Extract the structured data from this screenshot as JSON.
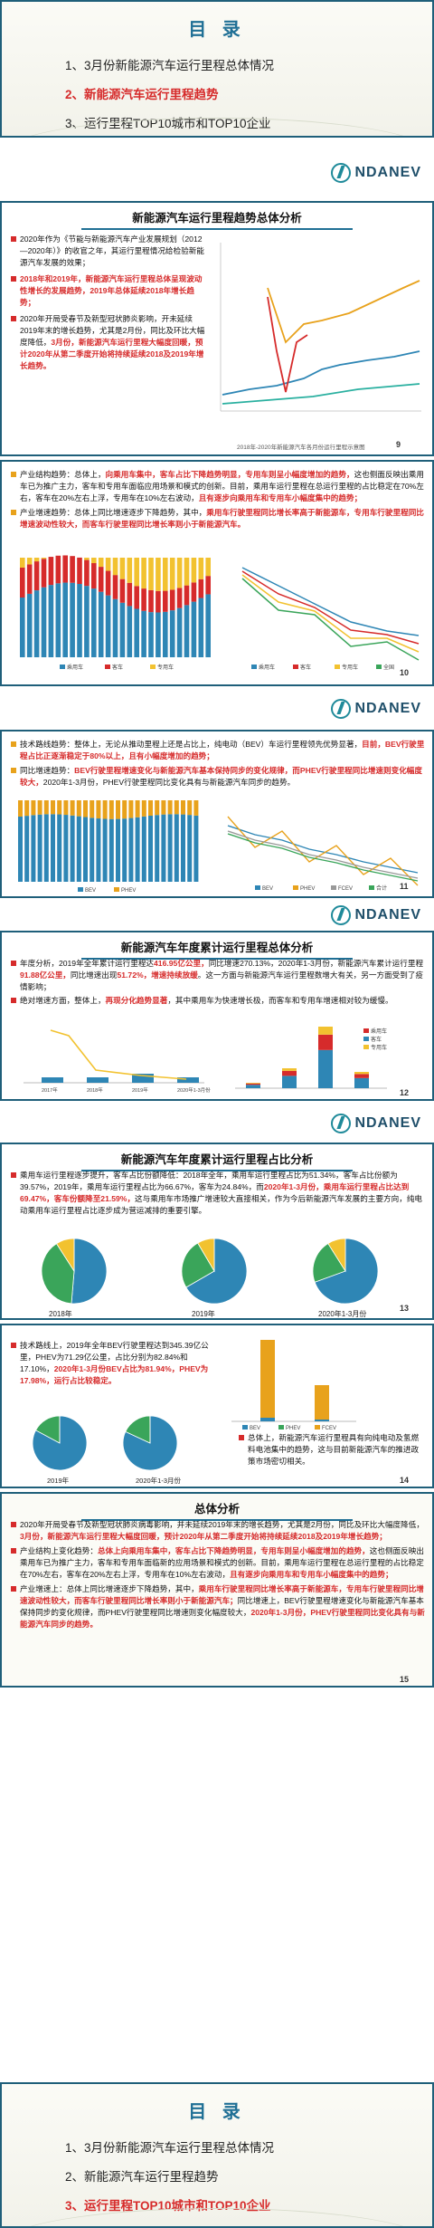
{
  "toc1": {
    "title": "目 录",
    "items": [
      "1、3月份新能源汽车运行里程总体情况",
      "2、新能源汽车运行里程趋势",
      "3、运行里程TOP10城市和TOP10企业"
    ]
  },
  "brand": "NDANEV",
  "s2": {
    "title": "新能源汽车运行里程趋势总体分析",
    "p1": "2020年作为《节能与新能源汽车产业发展规划（2012—2020年）》的收官之年，其运行里程情况给检验新能源汽车发展的效果；",
    "p2": "2018年和2019年，新能源汽车运行里程总体呈现波动性增长的发展趋势，2019年总体延续2018年增长趋势；",
    "p3a": "2020年开局受春节及新型冠状肺炎影响，开未延续2019年末的增长趋势，尤其是2月份，同比及环比大幅度降低，",
    "p3b": "3月份，新能源汽车运行里程大幅度回暖，预计2020年从第二季度开始将持续延续2018及2019年增长趋势。",
    "caption": "2018年-2020年新能源汽车各月份运行里程示意图",
    "page": "9"
  },
  "s3": {
    "b1a": "产业结构趋势：总体上，",
    "b1b": "向乘用车集中，客车占比下降趋势明显，专用车则呈小幅度增加的趋势，",
    "b1c": "这也侧面反映出乘用车已为推广主力，客车和专用车面临应用场景和模式的创新。目前，乘用车运行里程在总运行里程的占比稳定在70%左右，客车在20%左右上浮，专用车在10%左右波动，",
    "b1d": "且有逐步向乘用车和专用车小幅度集中的趋势；",
    "b2a": "产业增速趋势：总体上同比增速逐步下降趋势，其中，",
    "b2b": "乘用车行驶里程同比增长率高于新能源车，专用车行驶里程同比增速波动性较大，而客车行驶里程同比增长率则小于新能源汽车。",
    "legend1": [
      "乘用车",
      "客车",
      "专用车"
    ],
    "legend2": [
      "乘用车",
      "客车",
      "专用车",
      "全国"
    ],
    "page": "10"
  },
  "s4": {
    "b1a": "技术路线趋势：整体上，无论从推动里程上还是占比上，纯电动（BEV）车运行里程领先优势显著，",
    "b1b": "目前，BEV行驶里程占比正逐渐稳定于80%以上，且有小幅度增加的趋势；",
    "b2a": "同比增速趋势：",
    "b2b": "BEV行驶里程增速变化与新能源汽车基本保持同步的变化规律，而PHEV行驶里程同比增速则变化幅度较大，",
    "b2c": "2020年1-3月份，PHEV行驶里程同比变化具有与新能源汽车同步的趋势。",
    "legend1": [
      "BEV",
      "PHEV"
    ],
    "legend2": [
      "BEV",
      "PHEV",
      "FCEV",
      "合计"
    ],
    "page": "11"
  },
  "s5": {
    "title": "新能源汽车年度累计运行里程总体分析",
    "b1a": "年度分析，2019年全年累计运行里程达",
    "b1b": "416.95亿公里，",
    "b1c": "同比增速270.13%，2020年1-3月份，新能源汽车累计运行里程",
    "b1d": "91.88亿公里，",
    "b1e": "同比增速出现",
    "b1f": "51.72%，增速持续放缓",
    "b1g": "。这一方面与新能源汽车运行里程数增大有关，另一方面受到了疫情影响；",
    "b2a": "绝对增速方面，整体上，",
    "b2b": "再现分化趋势显著",
    "b2c": "，其中乘用车为快速增长极，而客车和专用车增速相对较为缓慢。",
    "cats": [
      "2017年",
      "2018年",
      "2019年",
      "2020年1-3月份"
    ],
    "legend": [
      "乘用车",
      "客车",
      "专用车"
    ],
    "page": "12"
  },
  "s6": {
    "title": "新能源汽车年度累计运行里程占比分析",
    "b1a": "乘用车运行里程逐步提升，客车占比份额降低：2018年全年，乘用车运行里程占比为51.34%，客车占比份额为39.57%，2019年，乘用车运行里程占比为66.67%，客车为24.84%，而",
    "b1b": "2020年1-3月份，乘用车运行里程占比达到69.47%，客车份额降至21.59%，",
    "b1c": "这与乘用车市场推广增速较大直接相关，作为今后新能源汽车发展的主要方向，纯电动乘用车运行里程占比逐步成为营运减排的重要引擎。",
    "labels": [
      "2018年",
      "2019年",
      "2020年1-3月份"
    ],
    "page": "13"
  },
  "s7": {
    "b1a": "技术路线上，2019年全年BEV行驶里程达到345.39亿公里，PHEV为71.29亿公里，占比分别为82.84%和17.10%，",
    "b1b": "2020年1-3月份BEV占比为81.94%，PHEV为17.98%，运行占比较稳定。",
    "b2": "总体上，新能源汽车运行里程具有向纯电动及氢燃料电池集中的趋势，这与目前新能源汽车的推进政策市场密切相关。",
    "labels": [
      "2019年",
      "2020年1-3月份"
    ],
    "legend": [
      "BEV",
      "PHEV",
      "FCEV"
    ],
    "page": "14"
  },
  "s8": {
    "title": "总体分析",
    "b1a": "2020年开局受春节及新型冠状肺炎病毒影响，并未延续2019年末的增长趋势，尤其是2月份，同比及环比大幅度降低，",
    "b1b": "3月份，新能源汽车运行里程大幅度回暖，预计2020年从第二季度开始将持续延续2018及2019年增长趋势；",
    "b2a": "产业结构上变化趋势：",
    "b2b": "总体上向乘用车集中，客车占比下降趋势明显，专用车则呈小幅度增加的趋势，",
    "b2c": "这也侧面反映出乘用车已为推广主力，客车和专用车面临新的应用场景和模式的创新。目前，乘用车运行里程在总运行里程的占比稳定在70%左右，客车在20%左右上浮，专用车在10%左右波动，",
    "b2d": "且有逐步向乘用车和专用车小幅度集中的趋势；",
    "b3a": "产业增速上：总体上同比增速逐步下降趋势，其中，",
    "b3b": "乘用车行驶里程同比增长率高于新能源车，专用车行驶里程同比增速波动性较大，而客车行驶里程同比增长率则小于新能源汽车；",
    "b3c": "同比增速上，BEV行驶里程增速变化与新能源汽车基本保持同步的变化规律，而PHEV行驶里程同比增速则变化幅度较大，",
    "b3d": "2020年1-3月份，PHEV行驶里程同比变化具有与新能源汽车同步的趋势。",
    "page": "15"
  },
  "toc2": {
    "title": "目 录",
    "items": [
      "1、3月份新能源汽车运行里程总体情况",
      "2、新能源汽车运行里程趋势",
      "3、运行里程TOP10城市和TOP10企业"
    ]
  },
  "colors": {
    "accent": "#1f6f95",
    "red": "#d62b2b",
    "blue": "#2e86b5",
    "yellow": "#f2c230",
    "green": "#3aa55a",
    "orange": "#e8a21c"
  }
}
